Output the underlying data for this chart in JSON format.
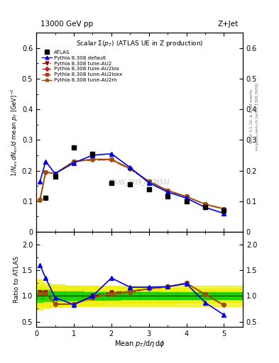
{
  "title_top": "13000 GeV pp",
  "title_right": "Z+Jet",
  "panel_title": "Scalar Σ(p_T) (ATLAS UE in Z production)",
  "watermark": "ATLAS_2019_I1736531",
  "rivet_text": "Rivet 3.1.10, ≥ 2.9M events",
  "mcplots_text": "mcplots.cern.ch [arXiv:1306.3436]",
  "xlabel": "Mean p_T/dη dφ",
  "ylabel_ratio": "Ratio to ATLAS",
  "xlim": [
    0,
    5.5
  ],
  "ylim_main": [
    0,
    0.65
  ],
  "ylim_ratio": [
    0.4,
    2.25
  ],
  "yticks_main": [
    0.0,
    0.1,
    0.2,
    0.3,
    0.4,
    0.5,
    0.6
  ],
  "yticks_ratio": [
    0.5,
    1.0,
    1.5,
    2.0
  ],
  "xticks": [
    0,
    1,
    2,
    3,
    4,
    5
  ],
  "atlas_x": [
    0.25,
    0.5,
    1.0,
    1.5,
    2.0,
    2.5,
    3.0,
    3.5,
    4.0,
    4.5,
    5.0
  ],
  "atlas_y": [
    0.11,
    0.18,
    0.275,
    0.255,
    0.16,
    0.155,
    0.14,
    0.115,
    0.1,
    0.08,
    0.07
  ],
  "pythia_default_x": [
    0.1,
    0.25,
    0.5,
    1.0,
    1.5,
    2.0,
    2.5,
    3.0,
    3.5,
    4.0,
    4.5,
    5.0
  ],
  "pythia_default_y": [
    0.165,
    0.23,
    0.19,
    0.225,
    0.25,
    0.255,
    0.21,
    0.16,
    0.13,
    0.11,
    0.08,
    0.06
  ],
  "pythia_AU2_x": [
    0.1,
    0.25,
    0.5,
    1.0,
    1.5,
    2.0,
    2.5,
    3.0,
    3.5,
    4.0,
    4.5,
    5.0
  ],
  "pythia_AU2_y": [
    0.105,
    0.195,
    0.19,
    0.23,
    0.235,
    0.235,
    0.205,
    0.165,
    0.135,
    0.115,
    0.09,
    0.075
  ],
  "pythia_AU2lox_x": [
    0.1,
    0.25,
    0.5,
    1.0,
    1.5,
    2.0,
    2.5,
    3.0,
    3.5,
    4.0,
    4.5,
    5.0
  ],
  "pythia_AU2lox_y": [
    0.105,
    0.195,
    0.19,
    0.23,
    0.235,
    0.235,
    0.205,
    0.165,
    0.135,
    0.115,
    0.09,
    0.075
  ],
  "pythia_AU2loxx_x": [
    0.1,
    0.25,
    0.5,
    1.0,
    1.5,
    2.0,
    2.5,
    3.0,
    3.5,
    4.0,
    4.5,
    5.0
  ],
  "pythia_AU2loxx_y": [
    0.105,
    0.195,
    0.19,
    0.23,
    0.235,
    0.235,
    0.205,
    0.165,
    0.135,
    0.115,
    0.09,
    0.075
  ],
  "pythia_AU2m_x": [
    0.1,
    0.25,
    0.5,
    1.0,
    1.5,
    2.0,
    2.5,
    3.0,
    3.5,
    4.0,
    4.5,
    5.0
  ],
  "pythia_AU2m_y": [
    0.105,
    0.195,
    0.19,
    0.23,
    0.237,
    0.237,
    0.207,
    0.165,
    0.135,
    0.115,
    0.09,
    0.075
  ],
  "ratio_default_x": [
    0.1,
    0.25,
    0.5,
    1.0,
    1.5,
    2.0,
    2.5,
    3.0,
    3.5,
    4.0,
    4.5,
    5.0
  ],
  "ratio_default_y": [
    1.6,
    1.35,
    0.97,
    0.83,
    1.0,
    1.35,
    1.17,
    1.17,
    1.18,
    1.24,
    0.87,
    0.63
  ],
  "ratio_AU2_x": [
    0.1,
    0.25,
    0.5,
    1.0,
    1.5,
    2.0,
    2.5,
    3.0,
    3.5,
    4.0,
    4.5,
    5.0
  ],
  "ratio_AU2_y": [
    1.07,
    1.07,
    0.84,
    0.84,
    1.0,
    1.07,
    1.09,
    1.14,
    1.18,
    1.25,
    1.03,
    0.82
  ],
  "ratio_AU2lox_x": [
    0.1,
    0.25,
    0.5,
    1.0,
    1.5,
    2.0,
    2.5,
    3.0,
    3.5,
    4.0,
    4.5,
    5.0
  ],
  "ratio_AU2lox_y": [
    1.05,
    1.05,
    0.84,
    0.84,
    0.97,
    1.03,
    1.07,
    1.14,
    1.18,
    1.25,
    1.03,
    0.82
  ],
  "ratio_AU2loxx_x": [
    0.1,
    0.25,
    0.5,
    1.0,
    1.5,
    2.0,
    2.5,
    3.0,
    3.5,
    4.0,
    4.5,
    5.0
  ],
  "ratio_AU2loxx_y": [
    1.05,
    1.05,
    0.84,
    0.84,
    0.97,
    1.03,
    1.07,
    1.14,
    1.18,
    1.25,
    1.03,
    0.82
  ],
  "ratio_AU2m_x": [
    0.1,
    0.25,
    0.5,
    1.0,
    1.5,
    2.0,
    2.5,
    3.0,
    3.5,
    4.0,
    4.5,
    5.0
  ],
  "ratio_AU2m_y": [
    1.05,
    1.05,
    0.84,
    0.84,
    0.97,
    1.03,
    1.09,
    1.14,
    1.18,
    1.25,
    1.03,
    0.82
  ],
  "error_band_green_lo": 0.93,
  "error_band_green_hi": 1.07,
  "error_band_yellow_lo": 0.8,
  "error_band_yellow_hi": 1.2,
  "color_default": "#0000ee",
  "color_AU2": "#990000",
  "color_AU2lox": "#bb2222",
  "color_AU2loxx": "#bb3311",
  "color_AU2m": "#995500",
  "color_atlas": "#000000",
  "color_green_band": "#00cc00",
  "color_yellow_band": "#eeee00"
}
